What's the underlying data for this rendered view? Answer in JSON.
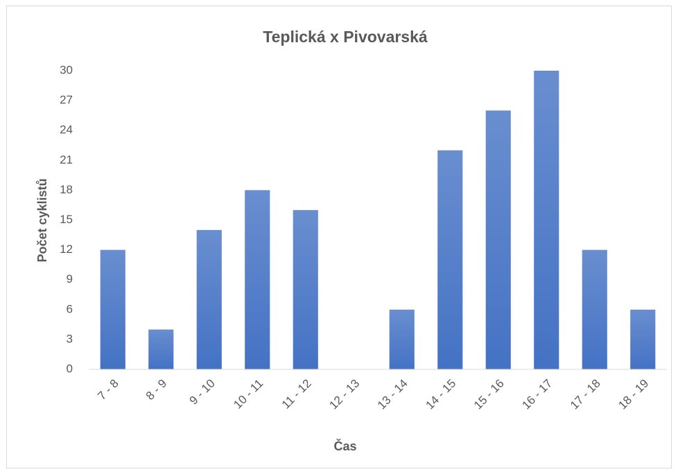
{
  "chart_data": {
    "type": "bar",
    "title": "Teplická x Pivovarská",
    "x_label": "Čas",
    "y_label": "Počet cyklistů",
    "categories": [
      "7 - 8",
      "8 - 9",
      "9 - 10",
      "10 - 11",
      "11 - 12",
      "12 - 13",
      "13 - 14",
      "14 - 15",
      "15 - 16",
      "16 - 17",
      "17 - 18",
      "18 - 19"
    ],
    "values": [
      12,
      4,
      14,
      18,
      16,
      0,
      6,
      22,
      26,
      30,
      12,
      6
    ],
    "color": "#4472c4",
    "ylim": [
      0,
      30
    ],
    "yticks": [
      0,
      3,
      6,
      9,
      12,
      15,
      18,
      21,
      24,
      27,
      30
    ],
    "grid": false
  }
}
